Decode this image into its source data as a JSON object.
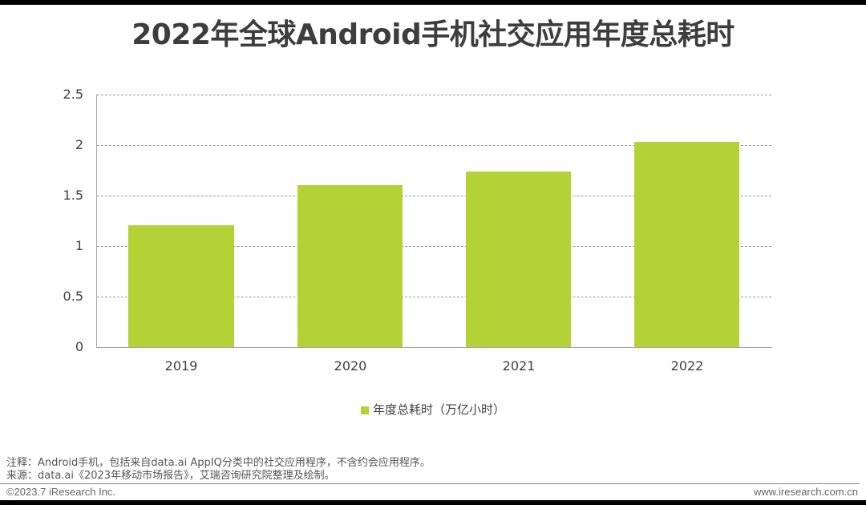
{
  "title": "2022年全球Android手机社交应用年度总耗时",
  "chart_data": {
    "type": "bar",
    "title": "2022年全球Android手机社交应用年度总耗时",
    "categories": [
      "2019",
      "2020",
      "2021",
      "2022"
    ],
    "series": [
      {
        "name": "年度总耗时（万亿小时）",
        "values": [
          1.21,
          1.6,
          1.74,
          2.03
        ],
        "color": "#b2d235"
      }
    ],
    "xlabel": "",
    "ylabel": "",
    "ylim": [
      0,
      2.5
    ],
    "yticks": [
      "0",
      "0.5",
      "1",
      "1.5",
      "2",
      "2.5"
    ],
    "grid": true,
    "legend_position": "bottom"
  },
  "legend": {
    "label": "年度总耗时（万亿小时）"
  },
  "notes": {
    "note": "注释：Android手机，包括来自data.ai AppIQ分类中的社交应用程序，不含约会应用程序。",
    "source": "来源：data.ai《2023年移动市场报告》，艾瑞咨询研究院整理及绘制。"
  },
  "footer": {
    "copyright": "©2023.7 iResearch Inc.",
    "website": "www.iresearch.com.cn"
  }
}
